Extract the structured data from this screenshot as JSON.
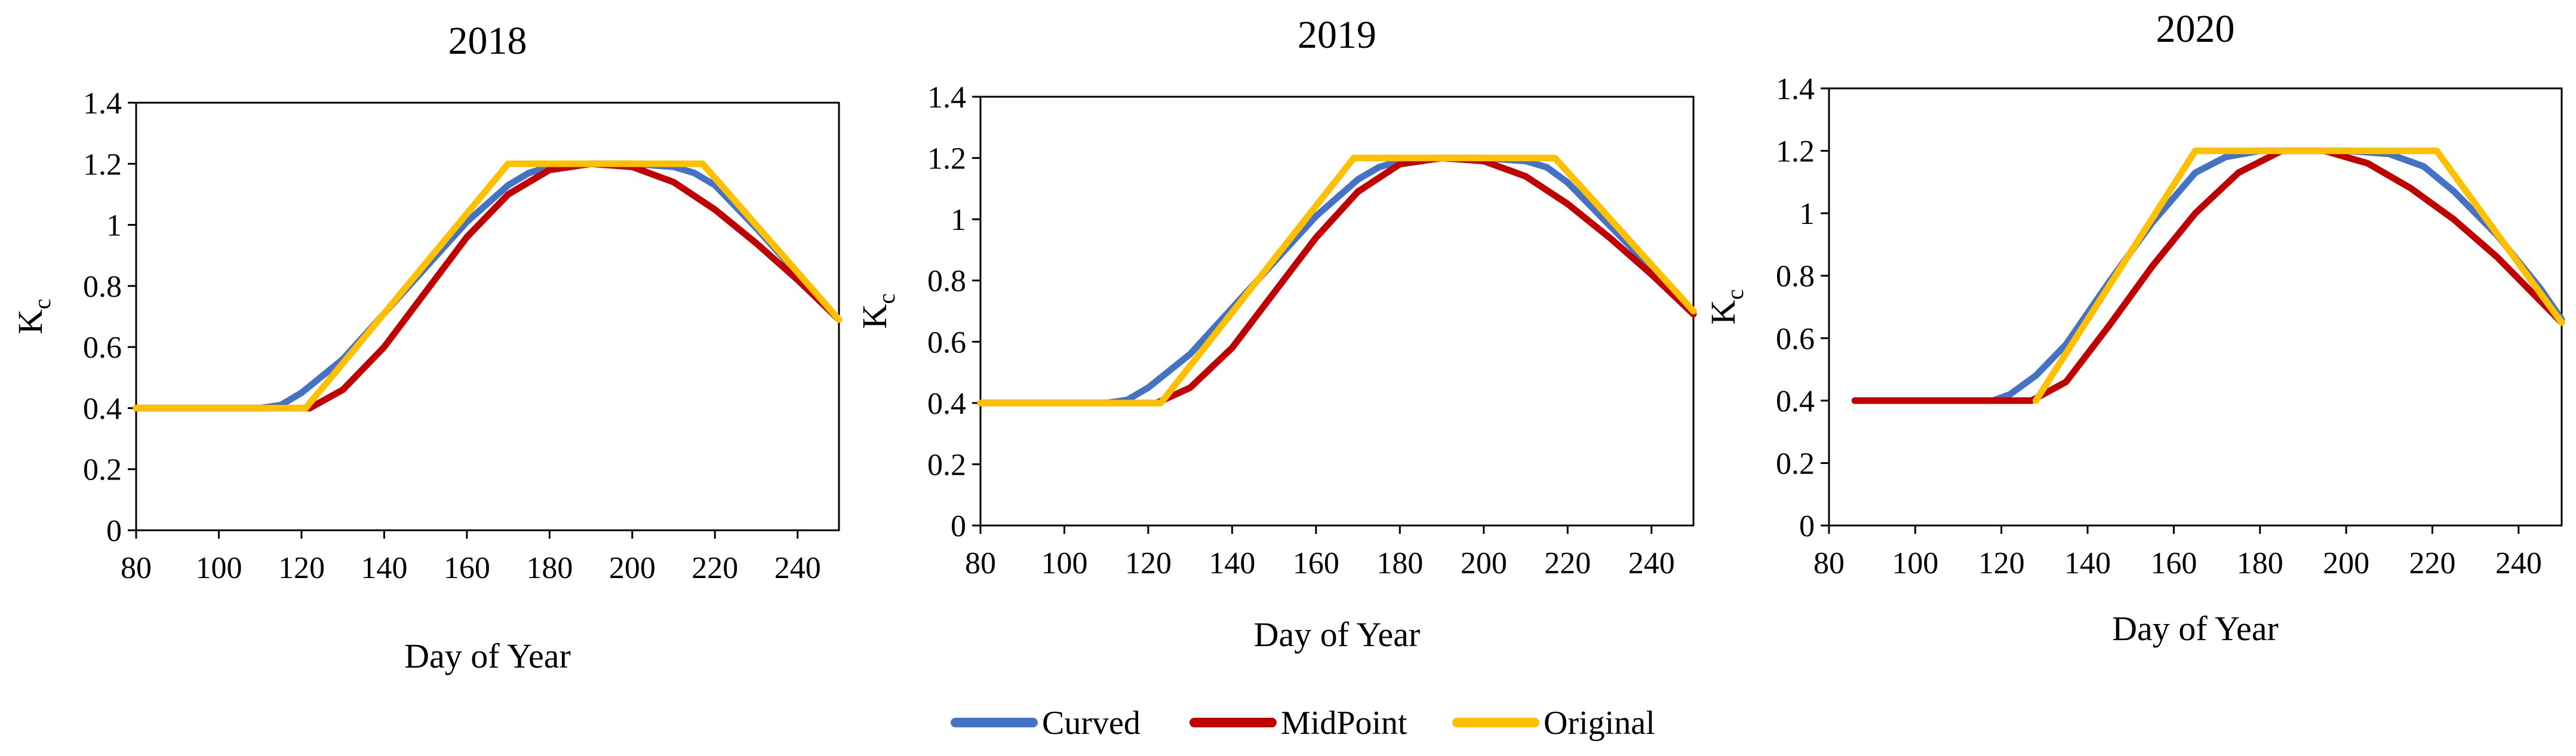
{
  "colors": {
    "curved": "#4472C4",
    "midpoint": "#C00000",
    "original": "#FFC000",
    "axis": "#000000"
  },
  "chart_data": [
    {
      "type": "line",
      "title": "2018",
      "xlabel": "Day of Year",
      "ylabel_main": "K",
      "ylabel_sub": "c",
      "xlim": [
        80,
        250
      ],
      "ylim": [
        0,
        1.4
      ],
      "xticks": [
        "80",
        "100",
        "120",
        "140",
        "160",
        "180",
        "200",
        "220",
        "240"
      ],
      "yticks": [
        "0",
        "0.2",
        "0.4",
        "0.6",
        "0.8",
        "1",
        "1.2",
        "1.4"
      ],
      "series": [
        {
          "name": "Curved",
          "color": "#4472C4",
          "x": [
            80,
            110,
            115,
            120,
            130,
            140,
            150,
            160,
            170,
            175,
            180,
            190,
            200,
            210,
            215,
            220,
            230,
            240,
            250
          ],
          "y": [
            0.4,
            0.4,
            0.41,
            0.45,
            0.56,
            0.71,
            0.86,
            1.01,
            1.13,
            1.17,
            1.19,
            1.2,
            1.2,
            1.19,
            1.17,
            1.13,
            0.99,
            0.84,
            0.69
          ]
        },
        {
          "name": "MidPoint",
          "color": "#C00000",
          "x": [
            80,
            122,
            130,
            140,
            150,
            160,
            170,
            180,
            190,
            200,
            210,
            220,
            230,
            240,
            250
          ],
          "y": [
            0.4,
            0.4,
            0.46,
            0.6,
            0.78,
            0.96,
            1.1,
            1.18,
            1.2,
            1.19,
            1.14,
            1.05,
            0.94,
            0.82,
            0.69
          ]
        },
        {
          "name": "Original",
          "color": "#FFC000",
          "x": [
            80,
            121,
            170,
            217,
            250
          ],
          "y": [
            0.4,
            0.4,
            1.2,
            1.2,
            0.69
          ]
        }
      ]
    },
    {
      "type": "line",
      "title": "2019",
      "xlabel": "Day of Year",
      "ylabel_main": "K",
      "ylabel_sub": "c",
      "xlim": [
        80,
        250
      ],
      "ylim": [
        0,
        1.4
      ],
      "xticks": [
        "80",
        "100",
        "120",
        "140",
        "160",
        "180",
        "200",
        "220",
        "240"
      ],
      "yticks": [
        "0",
        "0.2",
        "0.4",
        "0.6",
        "0.8",
        "1",
        "1.2",
        "1.4"
      ],
      "series": [
        {
          "name": "Curved",
          "color": "#4472C4",
          "x": [
            80,
            110,
            115,
            120,
            130,
            140,
            150,
            160,
            170,
            175,
            180,
            190,
            200,
            210,
            215,
            220,
            230,
            240,
            250
          ],
          "y": [
            0.4,
            0.4,
            0.41,
            0.45,
            0.56,
            0.71,
            0.86,
            1.01,
            1.13,
            1.17,
            1.19,
            1.2,
            1.2,
            1.19,
            1.17,
            1.12,
            0.98,
            0.84,
            0.7
          ]
        },
        {
          "name": "MidPoint",
          "color": "#C00000",
          "x": [
            80,
            122,
            130,
            140,
            150,
            160,
            170,
            180,
            190,
            200,
            210,
            220,
            230,
            240,
            250
          ],
          "y": [
            0.4,
            0.4,
            0.45,
            0.58,
            0.76,
            0.94,
            1.09,
            1.18,
            1.2,
            1.19,
            1.14,
            1.05,
            0.94,
            0.82,
            0.69
          ]
        },
        {
          "name": "Original",
          "color": "#FFC000",
          "x": [
            80,
            123,
            169,
            217,
            250
          ],
          "y": [
            0.4,
            0.4,
            1.2,
            1.2,
            0.7
          ]
        }
      ]
    },
    {
      "type": "line",
      "title": "2020",
      "xlabel": "Day of Year",
      "ylabel_main": "K",
      "ylabel_sub": "c",
      "xlim": [
        80,
        250
      ],
      "ylim": [
        0,
        1.4
      ],
      "xticks": [
        "80",
        "100",
        "120",
        "140",
        "160",
        "180",
        "200",
        "220",
        "240"
      ],
      "yticks": [
        "0",
        "0.2",
        "0.4",
        "0.6",
        "0.8",
        "1",
        "1.2",
        "1.4"
      ],
      "series": [
        {
          "name": "Curved",
          "color": "#4472C4",
          "x": [
            86,
            118,
            122,
            128,
            135,
            145,
            155,
            165,
            172,
            180,
            190,
            200,
            210,
            218,
            225,
            235,
            245,
            250
          ],
          "y": [
            0.4,
            0.4,
            0.42,
            0.48,
            0.58,
            0.78,
            0.97,
            1.13,
            1.18,
            1.2,
            1.2,
            1.2,
            1.19,
            1.15,
            1.07,
            0.93,
            0.76,
            0.66
          ]
        },
        {
          "name": "MidPoint",
          "color": "#C00000",
          "x": [
            86,
            127,
            135,
            145,
            155,
            165,
            175,
            185,
            195,
            205,
            215,
            225,
            235,
            245,
            250
          ],
          "y": [
            0.4,
            0.4,
            0.46,
            0.64,
            0.83,
            1.0,
            1.13,
            1.2,
            1.2,
            1.16,
            1.08,
            0.98,
            0.86,
            0.72,
            0.65
          ]
        },
        {
          "name": "Original",
          "color": "#FFC000",
          "x": [
            128,
            165,
            221,
            250
          ],
          "y": [
            0.4,
            1.2,
            1.2,
            0.65
          ]
        }
      ]
    }
  ],
  "legend": {
    "items": [
      {
        "label": "Curved",
        "color": "#4472C4"
      },
      {
        "label": "MidPoint",
        "color": "#C00000"
      },
      {
        "label": "Original",
        "color": "#FFC000"
      }
    ]
  }
}
